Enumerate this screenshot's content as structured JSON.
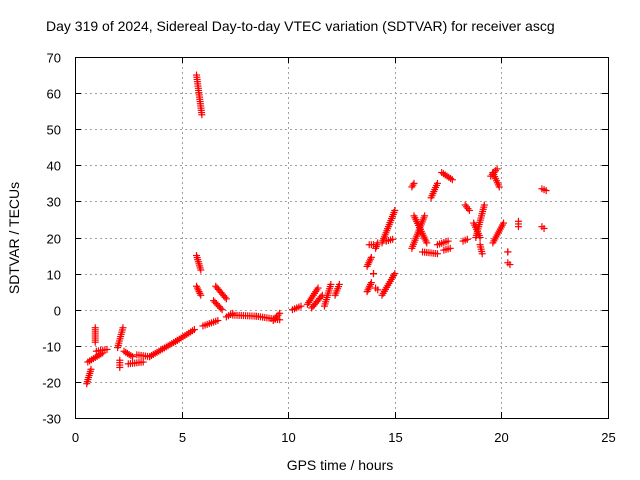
{
  "chart_data": {
    "type": "scatter",
    "title": "Day 319 of 2024, Sidereal Day-to-day VTEC variation (SDTVAR) for receiver ascg",
    "xlabel": "GPS time / hours",
    "ylabel": "SDTVAR / TECUs",
    "xlim": [
      0,
      25
    ],
    "ylim": [
      -30,
      70
    ],
    "xticks": [
      "0",
      "5",
      "10",
      "15",
      "20",
      "25"
    ],
    "yticks": [
      "-30",
      "-20",
      "-10",
      "0",
      "10",
      "20",
      "30",
      "40",
      "50",
      "60",
      "70"
    ],
    "grid": true,
    "marker": "+",
    "marker_color": "#ff0000",
    "series": [
      {
        "name": "SDTVAR",
        "segments": [
          [
            0.55,
            -20.5,
            0.75,
            -16.5
          ],
          [
            0.6,
            -14.5,
            1.3,
            -12.0
          ],
          [
            1.0,
            -11.5,
            1.5,
            -11.0
          ],
          [
            0.95,
            -9.0,
            0.95,
            -5.0
          ],
          [
            2.1,
            -16.0,
            2.1,
            -14.0
          ],
          [
            2.0,
            -10.5,
            2.25,
            -5.0
          ],
          [
            2.3,
            -11.5,
            2.7,
            -13.0
          ],
          [
            2.5,
            -15.0,
            3.2,
            -14.5
          ],
          [
            2.9,
            -12.5,
            3.5,
            -13.0
          ],
          [
            3.5,
            -13.0,
            4.8,
            -8.5
          ],
          [
            4.8,
            -8.5,
            5.6,
            -5.5
          ],
          [
            5.7,
            65.0,
            5.95,
            54.0
          ],
          [
            5.7,
            15.0,
            5.9,
            11.0
          ],
          [
            5.7,
            6.5,
            5.9,
            4.0
          ],
          [
            6.0,
            -4.5,
            6.7,
            -3.0
          ],
          [
            6.5,
            2.5,
            6.9,
            0.0
          ],
          [
            6.6,
            6.5,
            7.1,
            3.0
          ],
          [
            7.1,
            -2.0,
            7.4,
            -1.0
          ],
          [
            7.4,
            -1.5,
            8.5,
            -1.8
          ],
          [
            8.5,
            -1.8,
            9.6,
            -2.8
          ],
          [
            9.3,
            -3.0,
            9.6,
            -1.0
          ],
          [
            10.2,
            0.0,
            10.6,
            1.0
          ],
          [
            10.9,
            1.5,
            11.4,
            6.0
          ],
          [
            11.1,
            0.5,
            11.6,
            4.0
          ],
          [
            11.7,
            1.0,
            12.0,
            7.0
          ],
          [
            12.2,
            4.0,
            12.4,
            7.0
          ],
          [
            13.7,
            5.0,
            13.9,
            7.5
          ],
          [
            13.7,
            12.0,
            13.9,
            14.5
          ],
          [
            13.8,
            18.0,
            14.0,
            18.0
          ],
          [
            14.0,
            10.0,
            14.0,
            10.0
          ],
          [
            14.1,
            17.0,
            14.2,
            18.5
          ],
          [
            14.1,
            6.0,
            14.2,
            5.5
          ],
          [
            14.4,
            18.5,
            15.0,
            27.5
          ],
          [
            14.4,
            4.0,
            15.0,
            10.0
          ],
          [
            14.6,
            19.0,
            14.9,
            19.5
          ],
          [
            15.8,
            34.0,
            15.9,
            35.0
          ],
          [
            15.8,
            17.0,
            16.4,
            26.0
          ],
          [
            15.9,
            26.0,
            16.5,
            18.5
          ],
          [
            16.3,
            16.0,
            17.0,
            15.5
          ],
          [
            16.7,
            31.0,
            17.0,
            35.0
          ],
          [
            17.0,
            18.0,
            17.5,
            19.0
          ],
          [
            17.2,
            38.0,
            17.7,
            36.0
          ],
          [
            17.3,
            16.5,
            17.6,
            17.0
          ],
          [
            18.2,
            19.0,
            18.4,
            19.5
          ],
          [
            18.3,
            29.0,
            18.5,
            27.5
          ],
          [
            18.7,
            24.0,
            19.0,
            20.0
          ],
          [
            18.8,
            20.0,
            19.2,
            29.0
          ],
          [
            19.0,
            18.0,
            19.1,
            15.5
          ],
          [
            19.6,
            38.0,
            19.9,
            34.0
          ],
          [
            19.5,
            37.0,
            19.8,
            39.0
          ],
          [
            19.6,
            18.5,
            20.1,
            24.0
          ],
          [
            20.3,
            16.0,
            20.3,
            16.0
          ],
          [
            20.3,
            13.0,
            20.4,
            12.5
          ],
          [
            20.8,
            24.5,
            20.8,
            23.0
          ],
          [
            21.9,
            33.5,
            22.1,
            33.0
          ],
          [
            21.9,
            23.0,
            22.0,
            22.5
          ]
        ]
      }
    ]
  }
}
